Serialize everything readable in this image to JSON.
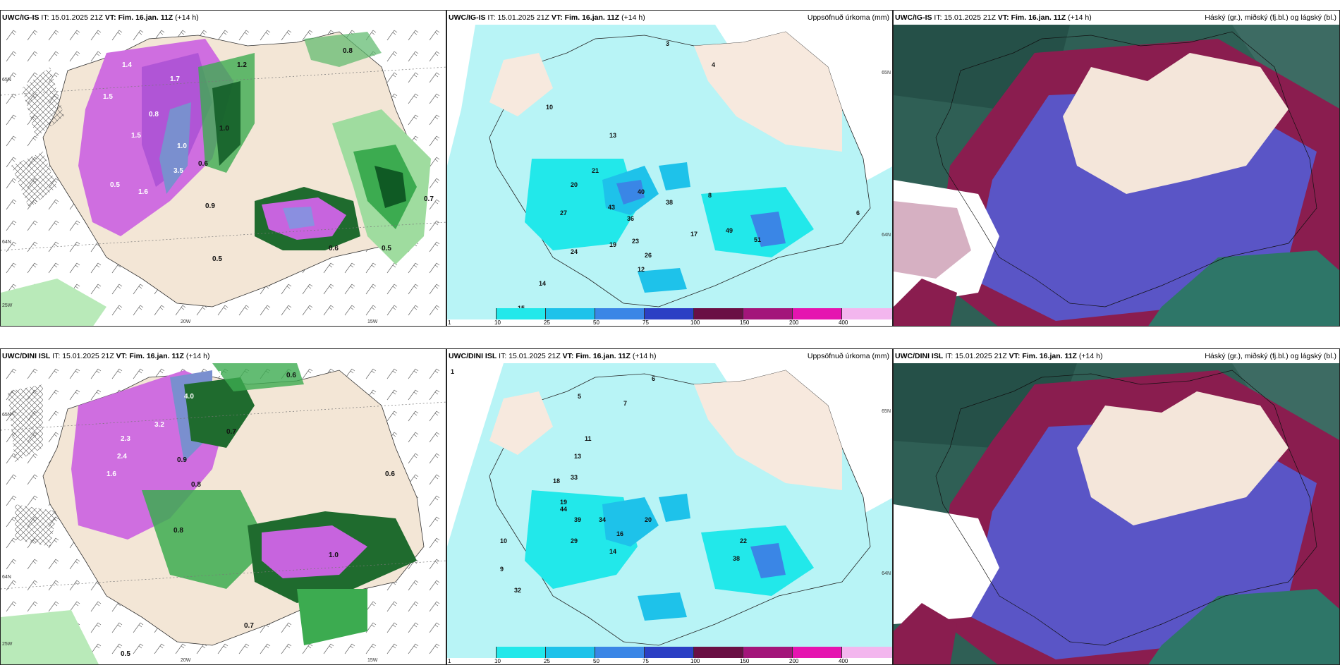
{
  "row1": {
    "p1": {
      "model": "UWC/IG-IS",
      "it_label": "IT:",
      "it": "15.01.2025 21Z",
      "vt_label": "VT:",
      "vt": "Fim. 16.jan. 11Z",
      "lead": "(+14 h)",
      "right": ""
    },
    "p2": {
      "model": "UWC/IG-IS",
      "it_label": "IT:",
      "it": "15.01.2025 21Z",
      "vt_label": "VT:",
      "vt": "Fim. 16.jan. 11Z",
      "lead": "(+14 h)",
      "right": "Uppsöfnuð úrkoma (mm)"
    },
    "p3": {
      "model": "UWC/IG-IS",
      "it_label": "IT:",
      "it": "15.01.2025 21Z",
      "vt_label": "VT:",
      "vt": "Fim. 16.jan. 11Z",
      "lead": "(+14 h)",
      "right": "Háský (gr.), miðský (fj.bl.) og lágský (bl.)"
    }
  },
  "row2": {
    "p1": {
      "model": "UWC/DINI ISL",
      "it_label": "IT:",
      "it": "15.01.2025 21Z",
      "vt_label": "VT:",
      "vt": "Fim. 16.jan. 11Z",
      "lead": "(+14 h)",
      "right": ""
    },
    "p2": {
      "model": "UWC/DINI ISL",
      "it_label": "IT:",
      "it": "15.01.2025 21Z",
      "vt_label": "VT:",
      "vt": "Fim. 16.jan. 11Z",
      "lead": "(+14 h)",
      "right": "Uppsöfnuð úrkoma (mm)"
    },
    "p3": {
      "model": "UWC/DINI ISL",
      "it_label": "IT:",
      "it": "15.01.2025 21Z",
      "vt_label": "VT:",
      "vt": "Fim. 16.jan. 11Z",
      "lead": "(+14 h)",
      "right": "Háský (gr.), miðský (fj.bl.) og lágský (bl.)"
    }
  },
  "axes": {
    "lat_top": "65N",
    "lat_mid": "64N",
    "lon_left": "25W",
    "lon_mid": "20W",
    "lon_right": "15W",
    "lat_right_top": "65N",
    "lat_right_mid": "64N"
  },
  "legend": {
    "labels": [
      "1",
      "10",
      "25",
      "50",
      "75",
      "100",
      "150",
      "200",
      "400"
    ],
    "colors": [
      "#b8f4f6",
      "#22e8ea",
      "#1ec2ea",
      "#3a86e6",
      "#2b3fc4",
      "#6a0f44",
      "#a3157a",
      "#e514b0",
      "#f3b6ee"
    ]
  },
  "map_values": {
    "r1p1": [
      "1.4",
      "1.7",
      "1.5",
      "0.8",
      "1.5",
      "1.0",
      "3.5",
      "0.5",
      "1.6",
      "0.6",
      "1.2",
      "0.9",
      "0.8",
      "1.0",
      "0.5",
      "0.6",
      "0.7",
      "0.5"
    ],
    "r1p2": [
      "3",
      "4",
      "10",
      "13",
      "21",
      "20",
      "43",
      "36",
      "40",
      "38",
      "19",
      "23",
      "27",
      "24",
      "14",
      "12",
      "26",
      "15",
      "17",
      "49",
      "51",
      "8",
      "6"
    ],
    "r2p1": [
      "1.1",
      "0.6",
      "4.0",
      "3.2",
      "2.3",
      "2.4",
      "1.6",
      "0.8",
      "0.7",
      "0.9",
      "1.0",
      "0.7",
      "0.6",
      "0.8",
      "0.5"
    ],
    "r2p2": [
      "1",
      "6",
      "5",
      "7",
      "11",
      "13",
      "18",
      "33",
      "19",
      "39",
      "44",
      "34",
      "29",
      "16",
      "20",
      "14",
      "22",
      "38",
      "32",
      "10",
      "9"
    ]
  },
  "colors": {
    "land": "#f5e9dc",
    "ocean": "#ffffff",
    "precip_light": "#b8f4f6",
    "precip_mid": "#22e8ea",
    "green_light": "#a5e6a5",
    "green_mid": "#3cab50",
    "green_dark": "#0f5a24",
    "magenta": "#e070e8",
    "purple": "#9a50c8",
    "cloud_high": "#2f5f55",
    "cloud_mid": "#8a1d4f",
    "cloud_low": "#5a55c6"
  }
}
